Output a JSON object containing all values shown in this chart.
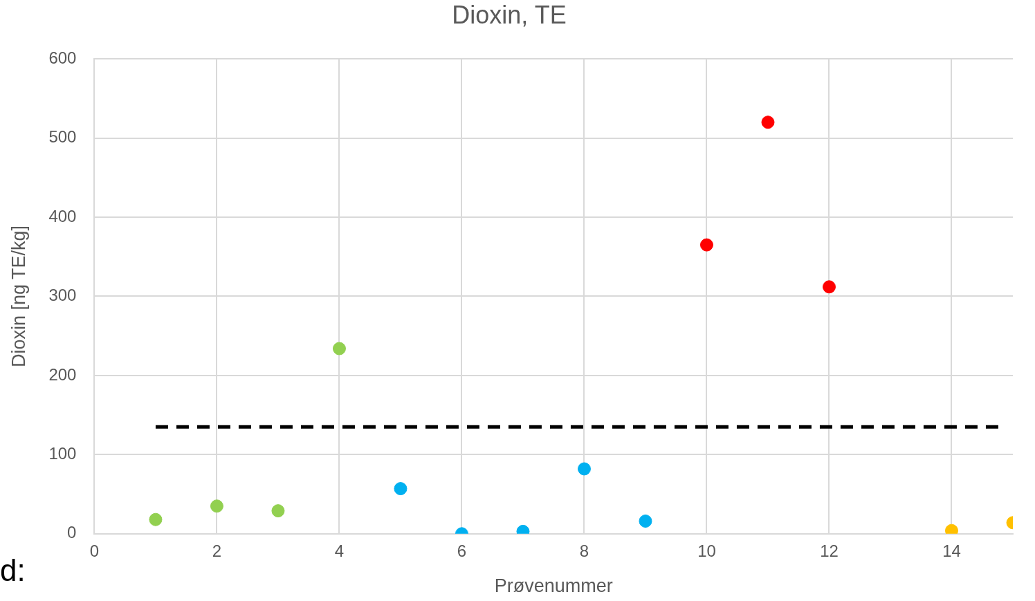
{
  "chart_data": {
    "type": "scatter",
    "title": "Dioxin, TE",
    "xlabel": "Prøvenummer",
    "ylabel": "Dioxin [ng TE/kg]",
    "xlim": [
      0,
      15
    ],
    "xticks": [
      0,
      2,
      4,
      6,
      8,
      10,
      12,
      14
    ],
    "ylim": [
      0,
      600
    ],
    "yticks": [
      0,
      100,
      200,
      300,
      400,
      500,
      600
    ],
    "grid": true,
    "legend": false,
    "marker": "circle",
    "series": [
      {
        "color": "#92d050",
        "x": [
          1,
          2,
          3,
          4
        ],
        "values": [
          18,
          35,
          29,
          234
        ]
      },
      {
        "color": "#00b0f0",
        "x": [
          5,
          6,
          7,
          8,
          9
        ],
        "values": [
          57,
          0,
          3,
          82,
          16
        ]
      },
      {
        "color": "#ff0000",
        "x": [
          10,
          11,
          12
        ],
        "values": [
          365,
          520,
          312
        ]
      },
      {
        "color": "#ffc000",
        "x": [
          14,
          15
        ],
        "values": [
          4,
          14
        ]
      },
      {
        "type": "line",
        "color": "#000000",
        "line_style": "dashed",
        "marker": "none",
        "x": [
          1,
          14.8
        ],
        "values": [
          135,
          135
        ]
      }
    ],
    "annotations": [
      "d:"
    ]
  }
}
